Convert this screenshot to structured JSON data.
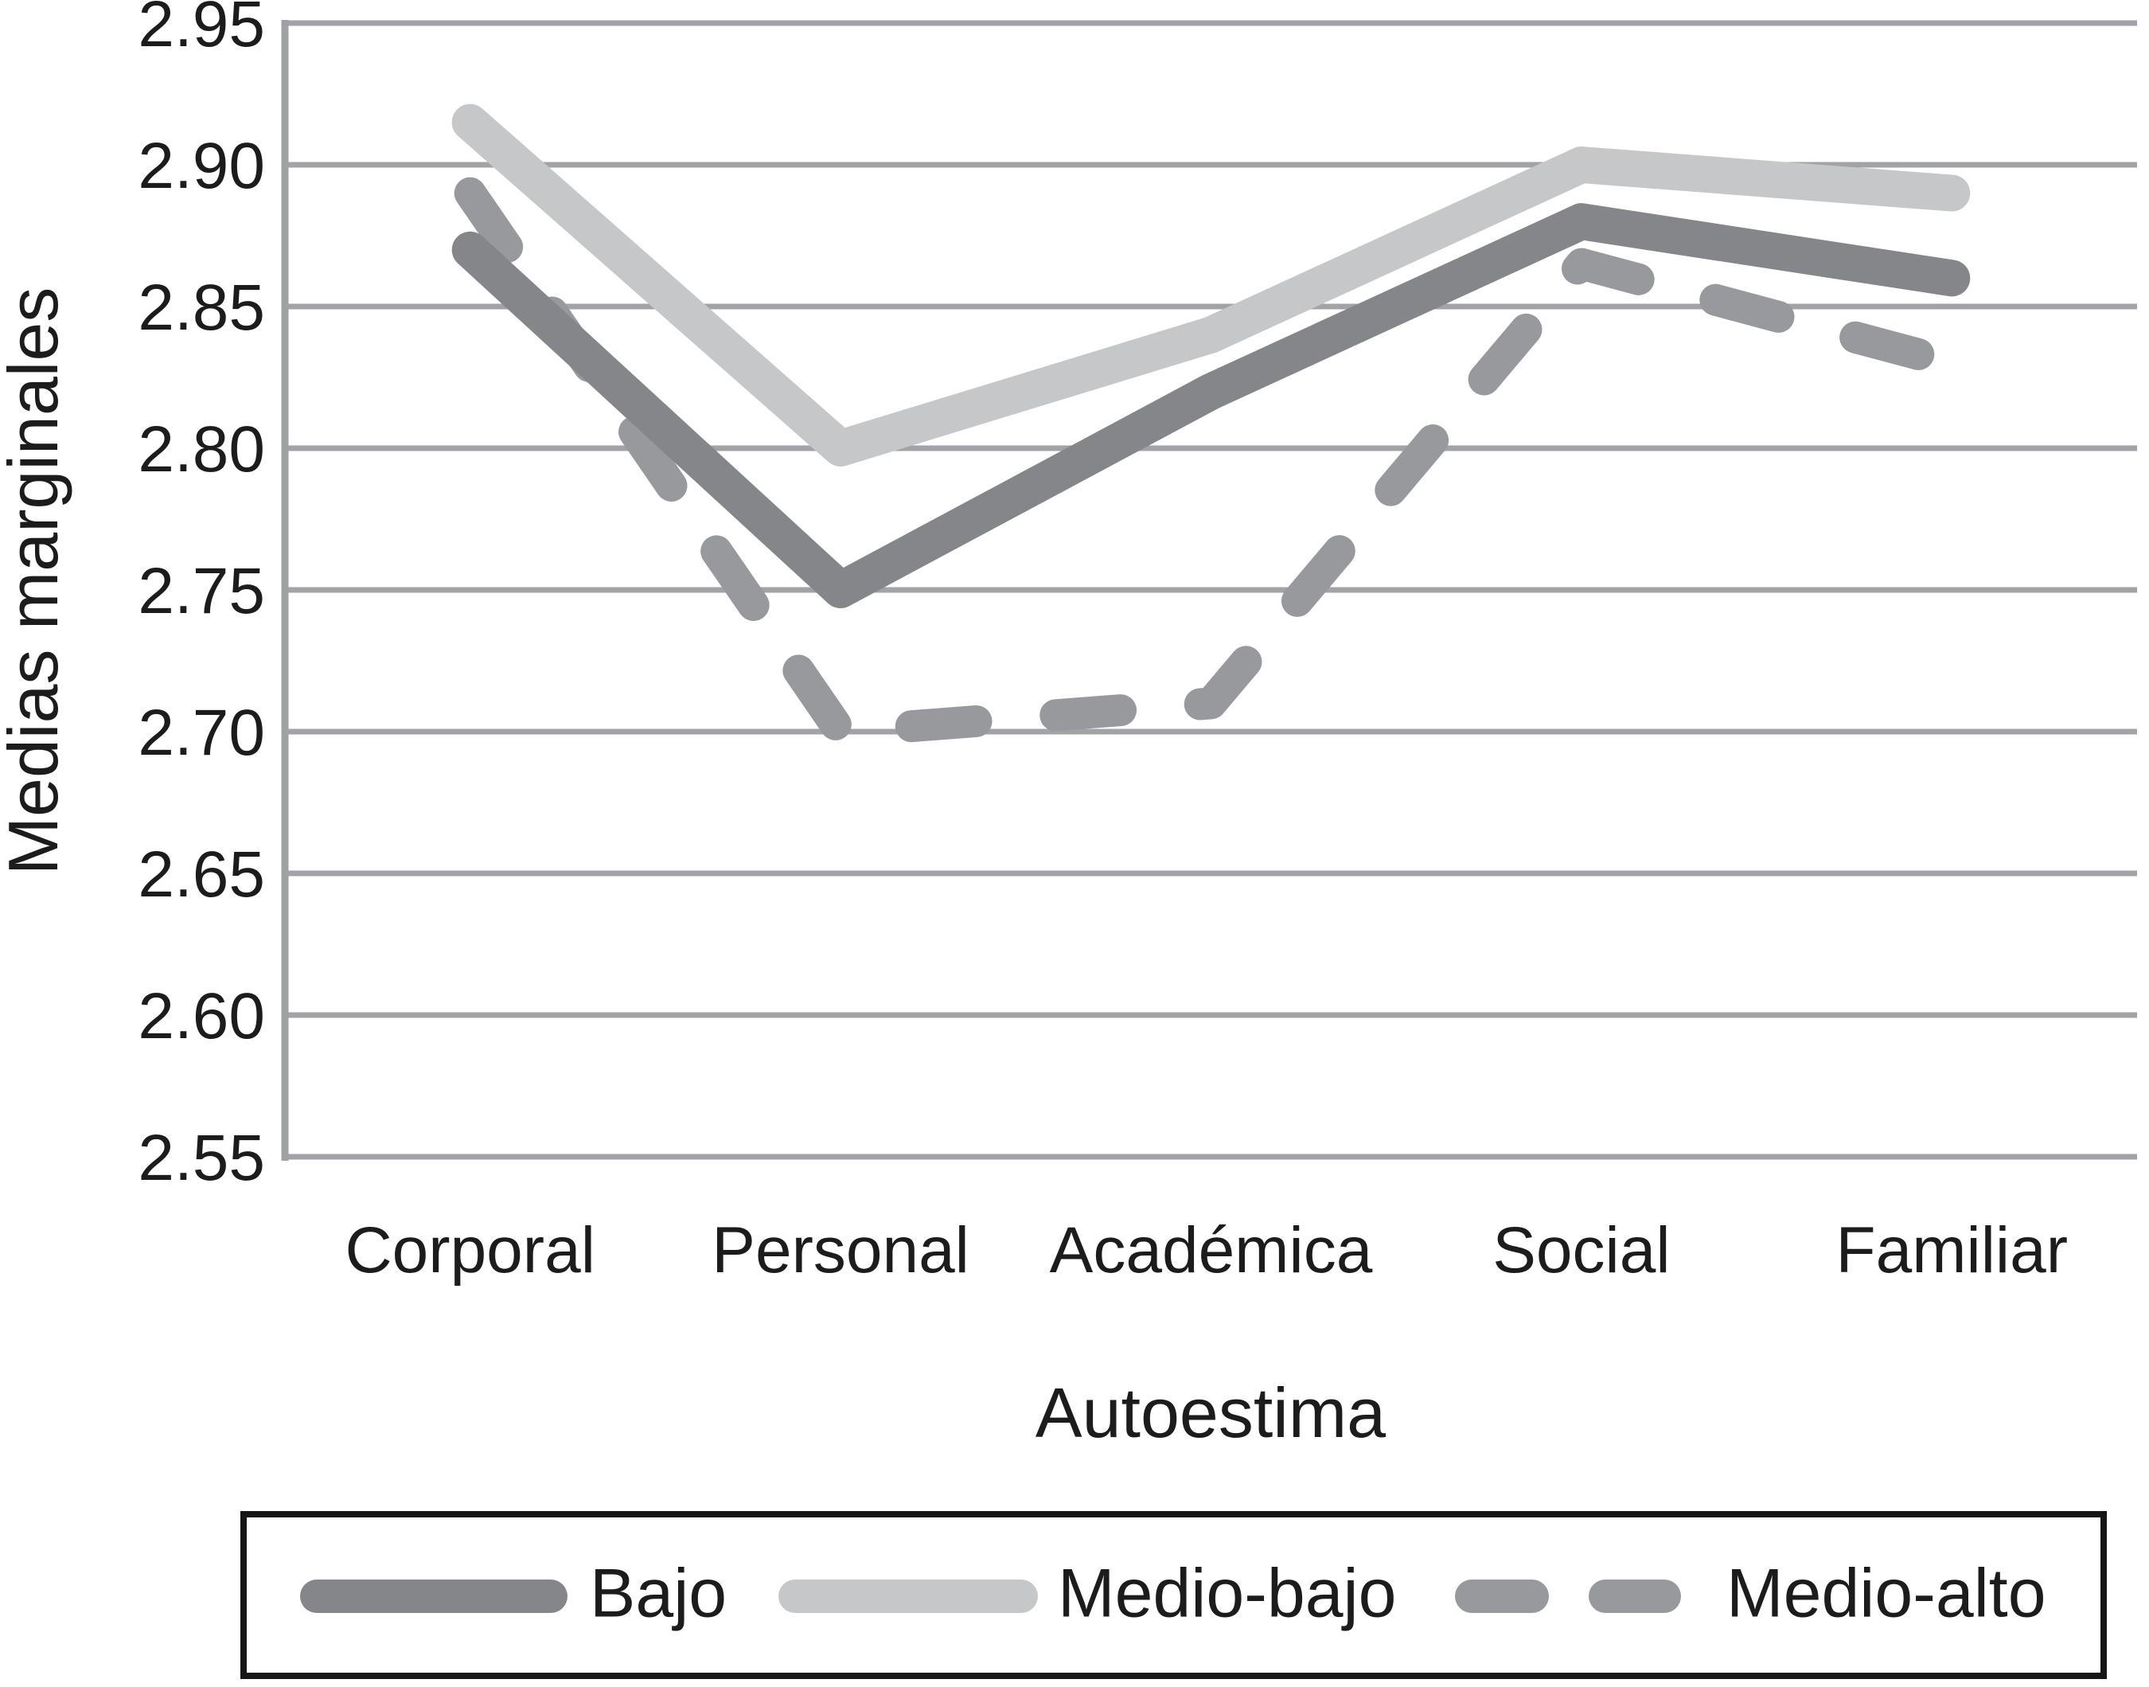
{
  "chart_data": {
    "type": "line",
    "categories": [
      "Corporal",
      "Personal",
      "Académica",
      "Social",
      "Familiar"
    ],
    "series": [
      {
        "name": "Bajo",
        "values": [
          2.87,
          2.75,
          2.82,
          2.88,
          2.86
        ],
        "color": "#84868a",
        "style": "solid"
      },
      {
        "name": "Medio-bajo",
        "values": [
          2.915,
          2.8,
          2.84,
          2.9,
          2.89
        ],
        "color": "#c5c7c9",
        "style": "solid"
      },
      {
        "name": "Medio-alto",
        "values": [
          2.89,
          2.7,
          2.71,
          2.865,
          2.83
        ],
        "color": "#97999d",
        "style": "dashed"
      }
    ],
    "xlabel": "Autoestima",
    "ylabel": "Medias marginales",
    "ylim": [
      2.55,
      2.95
    ],
    "ytick_step": 0.05,
    "yticks": [
      "2.95",
      "2.90",
      "2.85",
      "2.80",
      "2.75",
      "2.70",
      "2.65",
      "2.60",
      "2.55"
    ],
    "grid": true,
    "legend_position": "bottom"
  },
  "colors": {
    "background": "#ffffff",
    "gridline": "#a1a3a6",
    "axis": "#9fa1a4",
    "text": "#1c1c1c",
    "legend_border": "#161616"
  }
}
